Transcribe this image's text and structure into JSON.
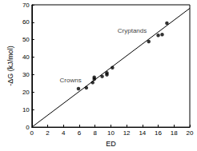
{
  "chart_data": {
    "type": "scatter",
    "xlabel": "ED",
    "ylabel": "-ΔG (kJ/mol)",
    "xlim": [
      0,
      20
    ],
    "xticks": [
      0,
      2,
      4,
      6,
      8,
      10,
      12,
      14,
      16,
      18,
      20
    ],
    "ylim": [
      0,
      70
    ],
    "yticks": [
      0,
      10,
      20,
      30,
      40,
      50,
      60,
      70
    ],
    "grid": false,
    "series": [
      {
        "type": "scatter",
        "color": "#000000",
        "marker": "circle",
        "x": [
          5.9,
          6.9,
          7.7,
          7.9,
          7.9,
          8.9,
          9.5,
          9.5,
          10.2,
          14.8,
          16.0,
          16.5,
          17.1
        ],
        "values": [
          22,
          22.5,
          25.5,
          27.5,
          28.5,
          29,
          30,
          31,
          34,
          49,
          52.5,
          53,
          59.5
        ]
      },
      {
        "type": "line",
        "color": "#000000",
        "line_style": "solid",
        "x": [
          0,
          20
        ],
        "values": [
          0,
          68
        ]
      }
    ],
    "annotations": [
      {
        "text": "Crowns",
        "x": 4.9,
        "y": 27
      },
      {
        "text": "Cryptands",
        "x": 12.7,
        "y": 55
      }
    ]
  }
}
